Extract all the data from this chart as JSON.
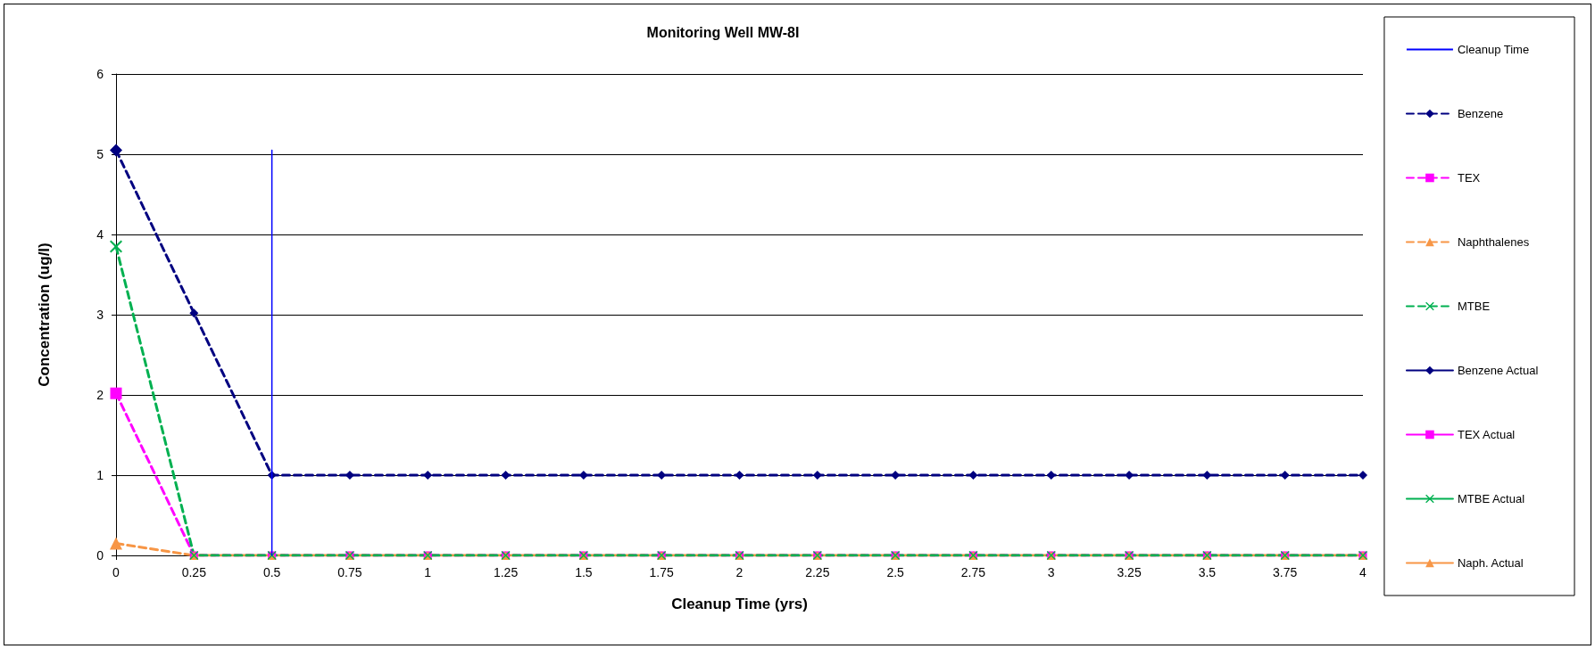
{
  "chart_data": {
    "type": "line",
    "title": "Monitoring Well MW-8I",
    "xlabel": "Cleanup Time (yrs)",
    "ylabel": "Concentration (ug/l)",
    "x": [
      0,
      0.25,
      0.5,
      0.75,
      1,
      1.25,
      1.5,
      1.75,
      2,
      2.25,
      2.5,
      2.75,
      3,
      3.25,
      3.5,
      3.75,
      4
    ],
    "series": [
      {
        "name": "Cleanup Time",
        "color": "#0000ff",
        "x": [
          0.5,
          0.5
        ],
        "values": [
          0,
          5.05
        ],
        "marker": "none",
        "line_style": "solid"
      },
      {
        "name": "Benzene",
        "color": "#000080",
        "values": [
          5.05,
          3.02,
          1,
          1,
          1,
          1,
          1,
          1,
          1,
          1,
          1,
          1,
          1,
          1,
          1,
          1,
          1
        ],
        "marker": "diamond",
        "line_style": "dashed"
      },
      {
        "name": "TEX",
        "color": "#ff00ff",
        "values": [
          2.02,
          0,
          0,
          0,
          0,
          0,
          0,
          0,
          0,
          0,
          0,
          0,
          0,
          0,
          0,
          0,
          0
        ],
        "marker": "square",
        "line_style": "dashed"
      },
      {
        "name": "Naphthalenes",
        "color": "#f79646",
        "values": [
          0.15,
          0,
          0,
          0,
          0,
          0,
          0,
          0,
          0,
          0,
          0,
          0,
          0,
          0,
          0,
          0,
          0
        ],
        "marker": "triangle",
        "line_style": "dashed"
      },
      {
        "name": "MTBE",
        "color": "#00b050",
        "values": [
          3.85,
          0,
          0,
          0,
          0,
          0,
          0,
          0,
          0,
          0,
          0,
          0,
          0,
          0,
          0,
          0,
          0
        ],
        "marker": "cross",
        "line_style": "dashed"
      },
      {
        "name": "Benzene Actual",
        "color": "#000080",
        "values": [
          5.05,
          null,
          null,
          null,
          null,
          null,
          null,
          null,
          null,
          null,
          null,
          null,
          null,
          null,
          null,
          null,
          null
        ],
        "marker": "diamond",
        "line_style": "solid"
      },
      {
        "name": "TEX Actual",
        "color": "#ff00ff",
        "values": [
          2.02,
          null,
          null,
          null,
          null,
          null,
          null,
          null,
          null,
          null,
          null,
          null,
          null,
          null,
          null,
          null,
          null
        ],
        "marker": "square",
        "line_style": "solid"
      },
      {
        "name": "MTBE Actual",
        "color": "#00b050",
        "values": [
          3.85,
          null,
          null,
          null,
          null,
          null,
          null,
          null,
          null,
          null,
          null,
          null,
          null,
          null,
          null,
          null,
          null
        ],
        "marker": "cross",
        "line_style": "solid"
      },
      {
        "name": "Naph. Actual",
        "color": "#f79646",
        "values": [
          0.15,
          null,
          null,
          null,
          null,
          null,
          null,
          null,
          null,
          null,
          null,
          null,
          null,
          null,
          null,
          null,
          null
        ],
        "marker": "triangle",
        "line_style": "solid"
      }
    ],
    "xlim": [
      0,
      4
    ],
    "xticks": [
      0,
      0.25,
      0.5,
      0.75,
      1,
      1.25,
      1.5,
      1.75,
      2,
      2.25,
      2.5,
      2.75,
      3,
      3.25,
      3.5,
      3.75,
      4
    ],
    "ylim": [
      0,
      6
    ],
    "yticks": [
      0,
      1,
      2,
      3,
      4,
      5,
      6
    ],
    "grid": "y",
    "legend": "right"
  }
}
